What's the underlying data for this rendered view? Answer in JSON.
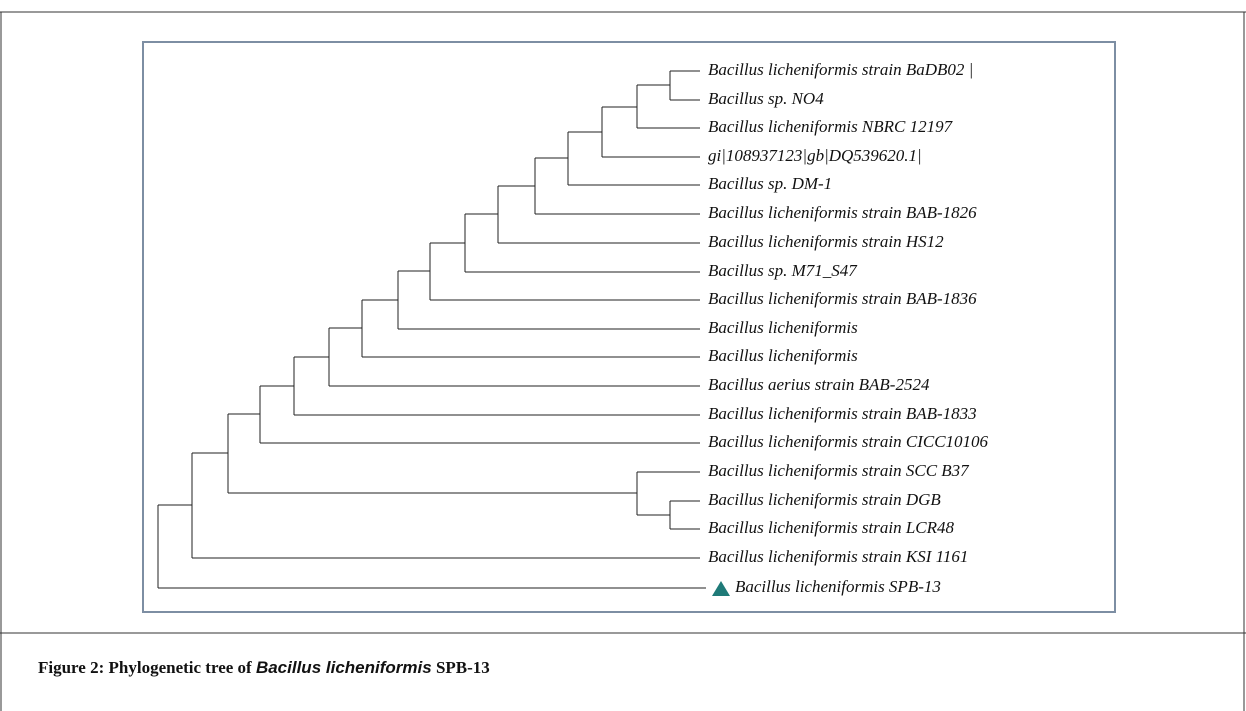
{
  "tree": {
    "leaves": [
      "Bacillus licheniformis strain BaDB02 |",
      "Bacillus sp. NO4",
      "Bacillus licheniformis NBRC 12197",
      "gi|108937123|gb|DQ539620.1|",
      "Bacillus sp. DM-1",
      "Bacillus licheniformis strain BAB-1826",
      "Bacillus licheniformis strain HS12",
      "Bacillus sp. M71_S47",
      "Bacillus licheniformis strain BAB-1836",
      "Bacillus licheniformis",
      "Bacillus licheniformis",
      "Bacillus aerius strain BAB-2524",
      "Bacillus licheniformis strain BAB-1833",
      "Bacillus licheniformis strain CICC10106",
      "Bacillus licheniformis strain SCC B37",
      "Bacillus licheniformis strain DGB",
      "Bacillus licheniformis strain LCR48",
      "Bacillus licheniformis strain KSI 1161",
      "Bacillus licheniformis SPB-13"
    ]
  },
  "caption": {
    "prefix": "Figure 2: Phylogenetic tree of ",
    "species": "Bacillus licheniformis",
    "suffix": " SPB-13"
  }
}
